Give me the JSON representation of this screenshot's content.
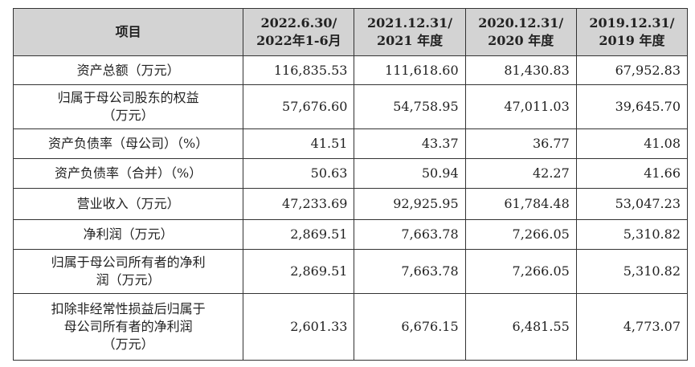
{
  "header": {
    "item": "项目",
    "periods": [
      {
        "line1": "2022.6.30/",
        "line2": "2022年1-6月"
      },
      {
        "line1": "2021.12.31/",
        "line2": "2021 年度"
      },
      {
        "line1": "2020.12.31/",
        "line2": "2020 年度"
      },
      {
        "line1": "2019.12.31/",
        "line2": "2019 年度"
      }
    ]
  },
  "rows": [
    {
      "label": [
        "资产总额（万元）"
      ],
      "values": [
        "116,835.53",
        "111,618.60",
        "81,430.83",
        "67,952.83"
      ]
    },
    {
      "label": [
        "归属于母公司股东的权益",
        "（万元）"
      ],
      "values": [
        "57,676.60",
        "54,758.95",
        "47,011.03",
        "39,645.70"
      ]
    },
    {
      "label": [
        "资产负债率（母公司）（%）"
      ],
      "values": [
        "41.51",
        "43.37",
        "36.77",
        "41.08"
      ]
    },
    {
      "label": [
        "资产负债率（合并）（%）"
      ],
      "values": [
        "50.63",
        "50.94",
        "42.27",
        "41.66"
      ]
    },
    {
      "label": [
        "营业收入（万元）"
      ],
      "values": [
        "47,233.69",
        "92,925.95",
        "61,784.48",
        "53,047.23"
      ]
    },
    {
      "label": [
        "净利润（万元）"
      ],
      "values": [
        "2,869.51",
        "7,663.78",
        "7,266.05",
        "5,310.82"
      ]
    },
    {
      "label": [
        "归属于母公司所有者的净利",
        "润（万元）"
      ],
      "values": [
        "2,869.51",
        "7,663.78",
        "7,266.05",
        "5,310.82"
      ]
    },
    {
      "label": [
        "扣除非经常性损益后归属于",
        "母公司所有者的净利润",
        "（万元）"
      ],
      "values": [
        "2,601.33",
        "6,676.15",
        "6,481.55",
        "4,773.07"
      ]
    }
  ]
}
